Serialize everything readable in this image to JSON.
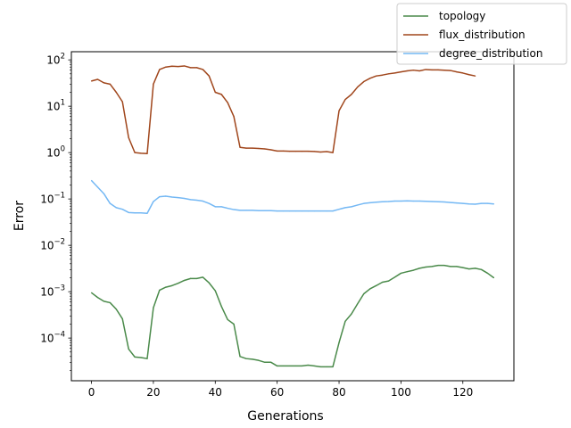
{
  "chart_data": {
    "type": "line",
    "title": "",
    "xlabel": "Generations",
    "ylabel": "Error",
    "xlim": [
      -6.5,
      136.5
    ],
    "ylim": [
      1.2e-05,
      150
    ],
    "yscale": "log",
    "grid": false,
    "legend_position": "top-right",
    "xticks": [
      {
        "value": 0,
        "label": "0"
      },
      {
        "value": 20,
        "label": "20"
      },
      {
        "value": 40,
        "label": "40"
      },
      {
        "value": 60,
        "label": "60"
      },
      {
        "value": 80,
        "label": "80"
      },
      {
        "value": 100,
        "label": "100"
      },
      {
        "value": 120,
        "label": "120"
      }
    ],
    "yticks": [
      {
        "value": 0.0001,
        "base": "10",
        "exp": "−4"
      },
      {
        "value": 0.001,
        "base": "10",
        "exp": "−3"
      },
      {
        "value": 0.01,
        "base": "10",
        "exp": "−2"
      },
      {
        "value": 0.1,
        "base": "10",
        "exp": "−1"
      },
      {
        "value": 1,
        "base": "10",
        "exp": "0"
      },
      {
        "value": 10,
        "base": "10",
        "exp": "1"
      },
      {
        "value": 100,
        "base": "10",
        "exp": "2"
      }
    ],
    "series": [
      {
        "name": "topology",
        "color": "#4a8a4a",
        "points": [
          [
            0,
            0.00095
          ],
          [
            2,
            0.00075
          ],
          [
            4,
            0.00062
          ],
          [
            6,
            0.00058
          ],
          [
            8,
            0.00042
          ],
          [
            10,
            0.00026
          ],
          [
            12,
            5.8e-05
          ],
          [
            14,
            3.9e-05
          ],
          [
            16,
            3.8e-05
          ],
          [
            18,
            3.6e-05
          ],
          [
            20,
            0.00045
          ],
          [
            22,
            0.00108
          ],
          [
            24,
            0.00125
          ],
          [
            26,
            0.00135
          ],
          [
            28,
            0.00152
          ],
          [
            30,
            0.00175
          ],
          [
            32,
            0.00192
          ],
          [
            34,
            0.00192
          ],
          [
            36,
            0.00205
          ],
          [
            38,
            0.00155
          ],
          [
            40,
            0.00105
          ],
          [
            42,
            0.00048
          ],
          [
            44,
            0.00025
          ],
          [
            46,
            0.0002
          ],
          [
            48,
            4e-05
          ],
          [
            50,
            3.6e-05
          ],
          [
            52,
            3.5e-05
          ],
          [
            54,
            3.3e-05
          ],
          [
            56,
            3e-05
          ],
          [
            58,
            3e-05
          ],
          [
            60,
            2.5e-05
          ],
          [
            62,
            2.5e-05
          ],
          [
            64,
            2.5e-05
          ],
          [
            66,
            2.5e-05
          ],
          [
            68,
            2.5e-05
          ],
          [
            70,
            2.6e-05
          ],
          [
            72,
            2.5e-05
          ],
          [
            74,
            2.4e-05
          ],
          [
            76,
            2.4e-05
          ],
          [
            78,
            2.4e-05
          ],
          [
            80,
            8e-05
          ],
          [
            82,
            0.00023
          ],
          [
            84,
            0.00033
          ],
          [
            86,
            0.00055
          ],
          [
            88,
            0.0009
          ],
          [
            90,
            0.00115
          ],
          [
            92,
            0.00135
          ],
          [
            94,
            0.0016
          ],
          [
            96,
            0.0017
          ],
          [
            98,
            0.00205
          ],
          [
            100,
            0.0025
          ],
          [
            102,
            0.0027
          ],
          [
            104,
            0.0029
          ],
          [
            106,
            0.0032
          ],
          [
            108,
            0.0034
          ],
          [
            110,
            0.0035
          ],
          [
            112,
            0.0037
          ],
          [
            114,
            0.0037
          ],
          [
            116,
            0.0035
          ],
          [
            118,
            0.0035
          ],
          [
            120,
            0.0033
          ],
          [
            122,
            0.0031
          ],
          [
            124,
            0.0032
          ],
          [
            126,
            0.003
          ],
          [
            128,
            0.0025
          ],
          [
            130,
            0.002
          ]
        ]
      },
      {
        "name": "flux_distribution",
        "color": "#a0461c",
        "points": [
          [
            0,
            35
          ],
          [
            2,
            38
          ],
          [
            4,
            32
          ],
          [
            6,
            30
          ],
          [
            8,
            20
          ],
          [
            10,
            12.5
          ],
          [
            12,
            2.1
          ],
          [
            14,
            1.0
          ],
          [
            16,
            0.97
          ],
          [
            18,
            0.95
          ],
          [
            20,
            30
          ],
          [
            22,
            62
          ],
          [
            24,
            70
          ],
          [
            26,
            73
          ],
          [
            28,
            72
          ],
          [
            30,
            74
          ],
          [
            32,
            68
          ],
          [
            34,
            68
          ],
          [
            36,
            62
          ],
          [
            38,
            45
          ],
          [
            40,
            20
          ],
          [
            42,
            18
          ],
          [
            44,
            12
          ],
          [
            46,
            6
          ],
          [
            48,
            1.3
          ],
          [
            50,
            1.25
          ],
          [
            52,
            1.25
          ],
          [
            54,
            1.23
          ],
          [
            56,
            1.2
          ],
          [
            58,
            1.15
          ],
          [
            60,
            1.08
          ],
          [
            62,
            1.08
          ],
          [
            64,
            1.07
          ],
          [
            66,
            1.07
          ],
          [
            68,
            1.07
          ],
          [
            70,
            1.07
          ],
          [
            72,
            1.06
          ],
          [
            74,
            1.03
          ],
          [
            76,
            1.05
          ],
          [
            78,
            1.0
          ],
          [
            80,
            8
          ],
          [
            82,
            14
          ],
          [
            84,
            18
          ],
          [
            86,
            26
          ],
          [
            88,
            34
          ],
          [
            90,
            40
          ],
          [
            92,
            45
          ],
          [
            94,
            47
          ],
          [
            96,
            50
          ],
          [
            98,
            52
          ],
          [
            100,
            55
          ],
          [
            102,
            58
          ],
          [
            104,
            60
          ],
          [
            106,
            58
          ],
          [
            108,
            62
          ],
          [
            110,
            61
          ],
          [
            112,
            61
          ],
          [
            114,
            60
          ],
          [
            116,
            59
          ],
          [
            118,
            55
          ],
          [
            120,
            52
          ],
          [
            122,
            48
          ],
          [
            124,
            45
          ]
        ]
      },
      {
        "name": "degree_distribution",
        "color": "#74b8f4",
        "points": [
          [
            0,
            0.25
          ],
          [
            2,
            0.18
          ],
          [
            4,
            0.13
          ],
          [
            6,
            0.08
          ],
          [
            8,
            0.065
          ],
          [
            10,
            0.06
          ],
          [
            12,
            0.051
          ],
          [
            14,
            0.05
          ],
          [
            16,
            0.05
          ],
          [
            18,
            0.049
          ],
          [
            20,
            0.088
          ],
          [
            22,
            0.112
          ],
          [
            24,
            0.115
          ],
          [
            26,
            0.11
          ],
          [
            28,
            0.107
          ],
          [
            30,
            0.103
          ],
          [
            32,
            0.097
          ],
          [
            34,
            0.094
          ],
          [
            36,
            0.09
          ],
          [
            38,
            0.08
          ],
          [
            40,
            0.068
          ],
          [
            42,
            0.068
          ],
          [
            44,
            0.063
          ],
          [
            46,
            0.059
          ],
          [
            48,
            0.057
          ],
          [
            50,
            0.057
          ],
          [
            52,
            0.057
          ],
          [
            54,
            0.056
          ],
          [
            56,
            0.056
          ],
          [
            58,
            0.056
          ],
          [
            60,
            0.055
          ],
          [
            62,
            0.055
          ],
          [
            64,
            0.055
          ],
          [
            66,
            0.055
          ],
          [
            68,
            0.055
          ],
          [
            70,
            0.055
          ],
          [
            72,
            0.055
          ],
          [
            74,
            0.055
          ],
          [
            76,
            0.055
          ],
          [
            78,
            0.055
          ],
          [
            80,
            0.06
          ],
          [
            82,
            0.065
          ],
          [
            84,
            0.068
          ],
          [
            86,
            0.074
          ],
          [
            88,
            0.08
          ],
          [
            90,
            0.083
          ],
          [
            92,
            0.085
          ],
          [
            94,
            0.087
          ],
          [
            96,
            0.088
          ],
          [
            98,
            0.09
          ],
          [
            100,
            0.09
          ],
          [
            102,
            0.091
          ],
          [
            104,
            0.09
          ],
          [
            106,
            0.09
          ],
          [
            108,
            0.089
          ],
          [
            110,
            0.088
          ],
          [
            112,
            0.087
          ],
          [
            114,
            0.086
          ],
          [
            116,
            0.084
          ],
          [
            118,
            0.082
          ],
          [
            120,
            0.08
          ],
          [
            122,
            0.078
          ],
          [
            124,
            0.077
          ],
          [
            126,
            0.08
          ],
          [
            128,
            0.08
          ],
          [
            130,
            0.078
          ]
        ]
      }
    ]
  }
}
